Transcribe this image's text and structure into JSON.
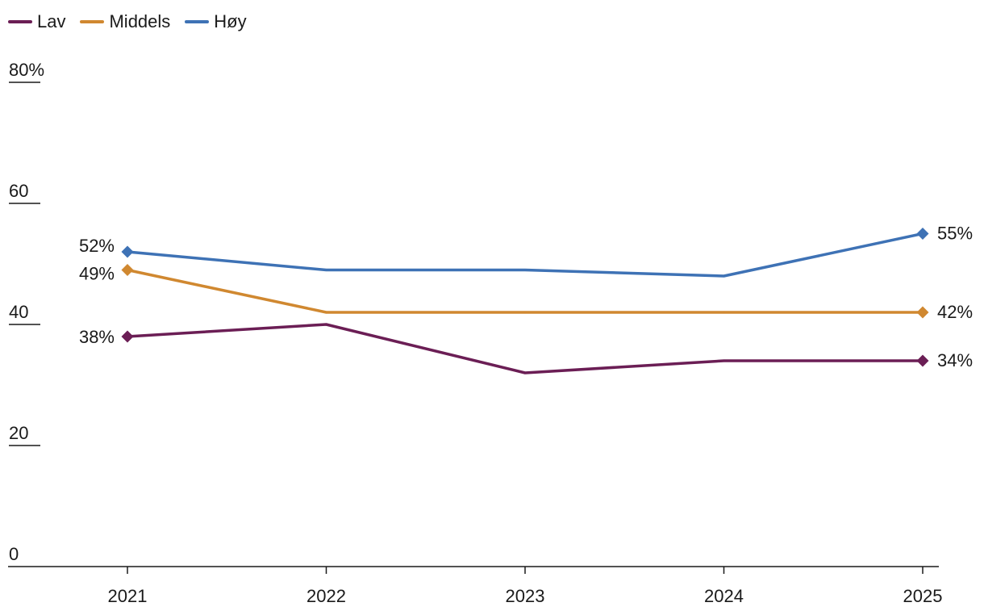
{
  "chart_data": {
    "type": "line",
    "title": "",
    "xlabel": "",
    "ylabel": "",
    "categories": [
      "2021",
      "2022",
      "2023",
      "2024",
      "2025"
    ],
    "ylim": [
      0,
      80
    ],
    "y_ticks": [
      {
        "value": 0,
        "label": "0"
      },
      {
        "value": 20,
        "label": "20"
      },
      {
        "value": 40,
        "label": "40"
      },
      {
        "value": 60,
        "label": "60"
      },
      {
        "value": 80,
        "label": "80%"
      }
    ],
    "legend_position": "top-left",
    "grid": false,
    "series": [
      {
        "name": "Lav",
        "color": "#6b1e55",
        "values": [
          38,
          40,
          32,
          34,
          34
        ],
        "start_label": "38%",
        "end_label": "34%"
      },
      {
        "name": "Middels",
        "color": "#d08830",
        "values": [
          49,
          42,
          42,
          42,
          42
        ],
        "start_label": "49%",
        "end_label": "42%"
      },
      {
        "name": "Høy",
        "color": "#3e72b5",
        "values": [
          52,
          49,
          49,
          48,
          55
        ],
        "start_label": "52%",
        "end_label": "55%"
      }
    ]
  }
}
